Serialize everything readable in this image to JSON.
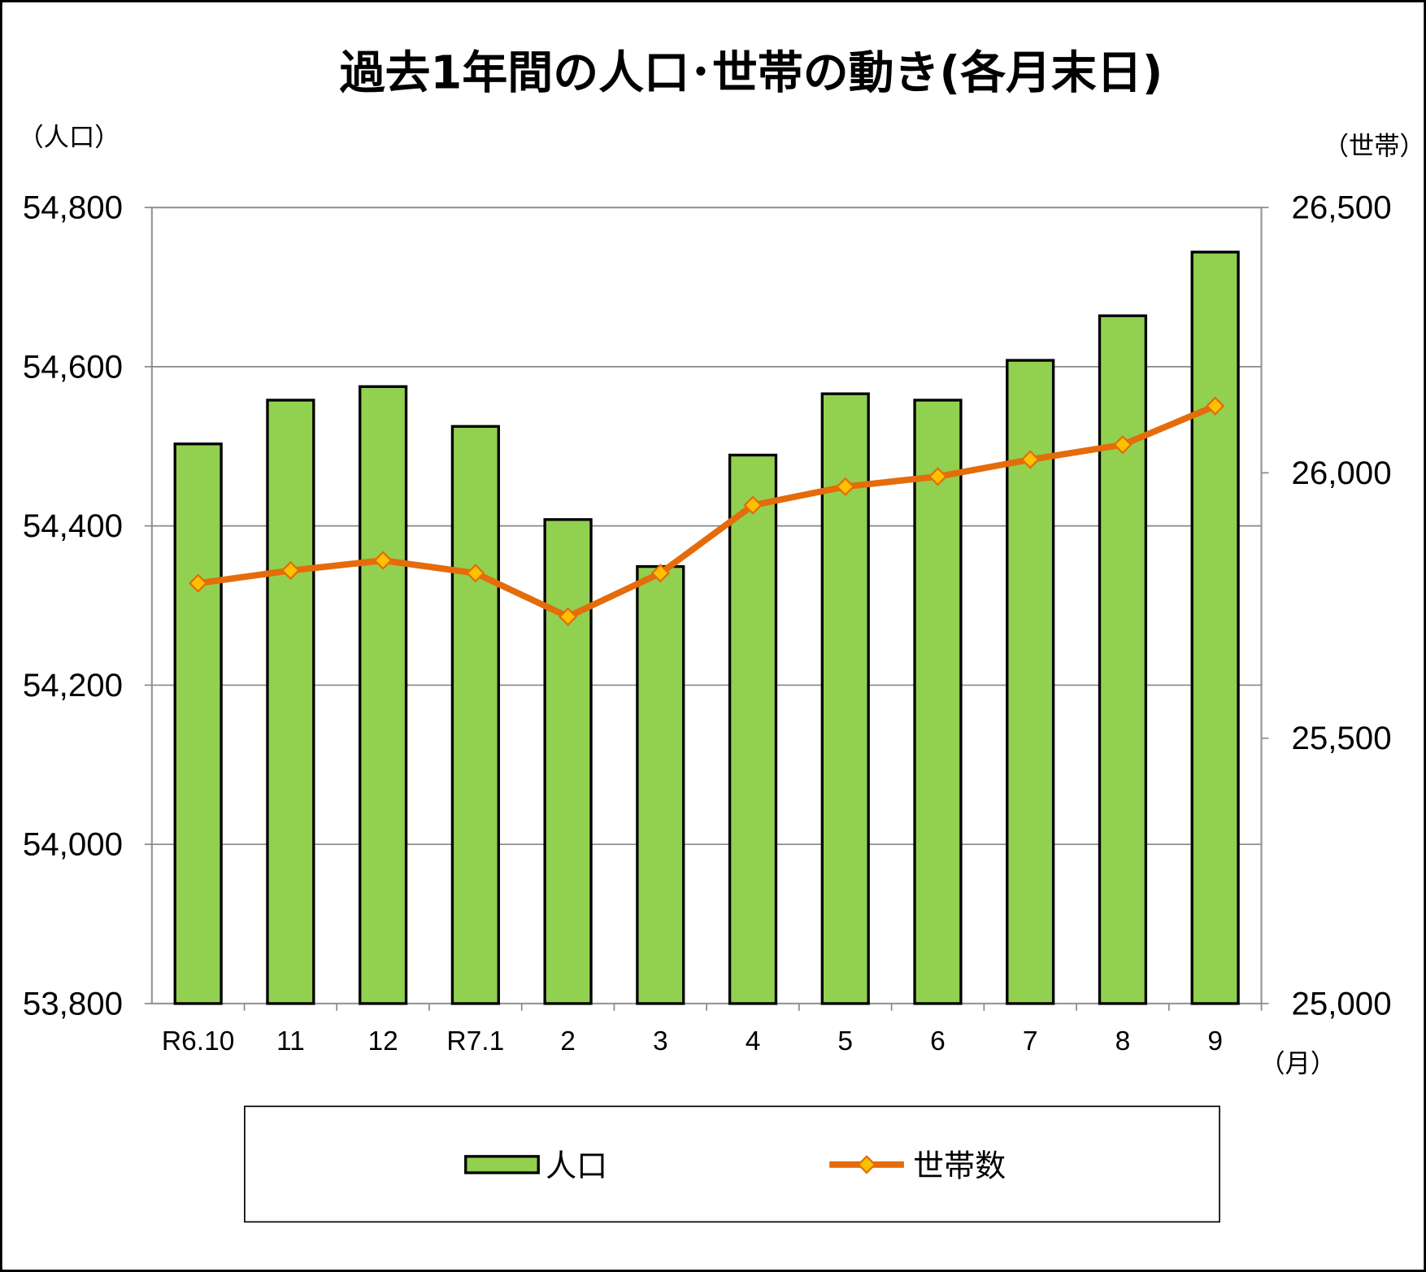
{
  "chart_data": {
    "type": "bar+line",
    "title": "過去1年間の人口･世帯の動き(各月末日)",
    "y_left_unit": "（人口）",
    "y_right_unit": "（世帯）",
    "x_unit": "（月）",
    "categories": [
      "R6.10",
      "11",
      "12",
      "R7.1",
      "2",
      "3",
      "4",
      "5",
      "6",
      "7",
      "8",
      "9"
    ],
    "y_left": {
      "min": 53800,
      "max": 54800,
      "ticks": [
        "53,800",
        "54,000",
        "54,200",
        "54,400",
        "54,600",
        "54,800"
      ],
      "tick_values": [
        53800,
        54000,
        54200,
        54400,
        54600,
        54800
      ]
    },
    "y_right": {
      "min": 25000,
      "max": 26500,
      "ticks": [
        "25,000",
        "25,500",
        "26,000",
        "26,500"
      ],
      "tick_values": [
        25000,
        25500,
        26000,
        26500
      ]
    },
    "grid": true,
    "legend_position": "bottom",
    "series": [
      {
        "name": "人口",
        "type": "bar",
        "axis": "left",
        "color": "#92d050",
        "values": [
          54503,
          54558,
          54575,
          54525,
          54408,
          54349,
          54489,
          54566,
          54558,
          54608,
          54664,
          54744
        ]
      },
      {
        "name": "世帯数",
        "type": "line",
        "axis": "right",
        "color": "#e46c0a",
        "marker_color": "#ffc000",
        "values": [
          25792,
          25816,
          25835,
          25811,
          25729,
          25811,
          25939,
          25974,
          25993,
          26025,
          26053,
          26126
        ]
      }
    ]
  }
}
